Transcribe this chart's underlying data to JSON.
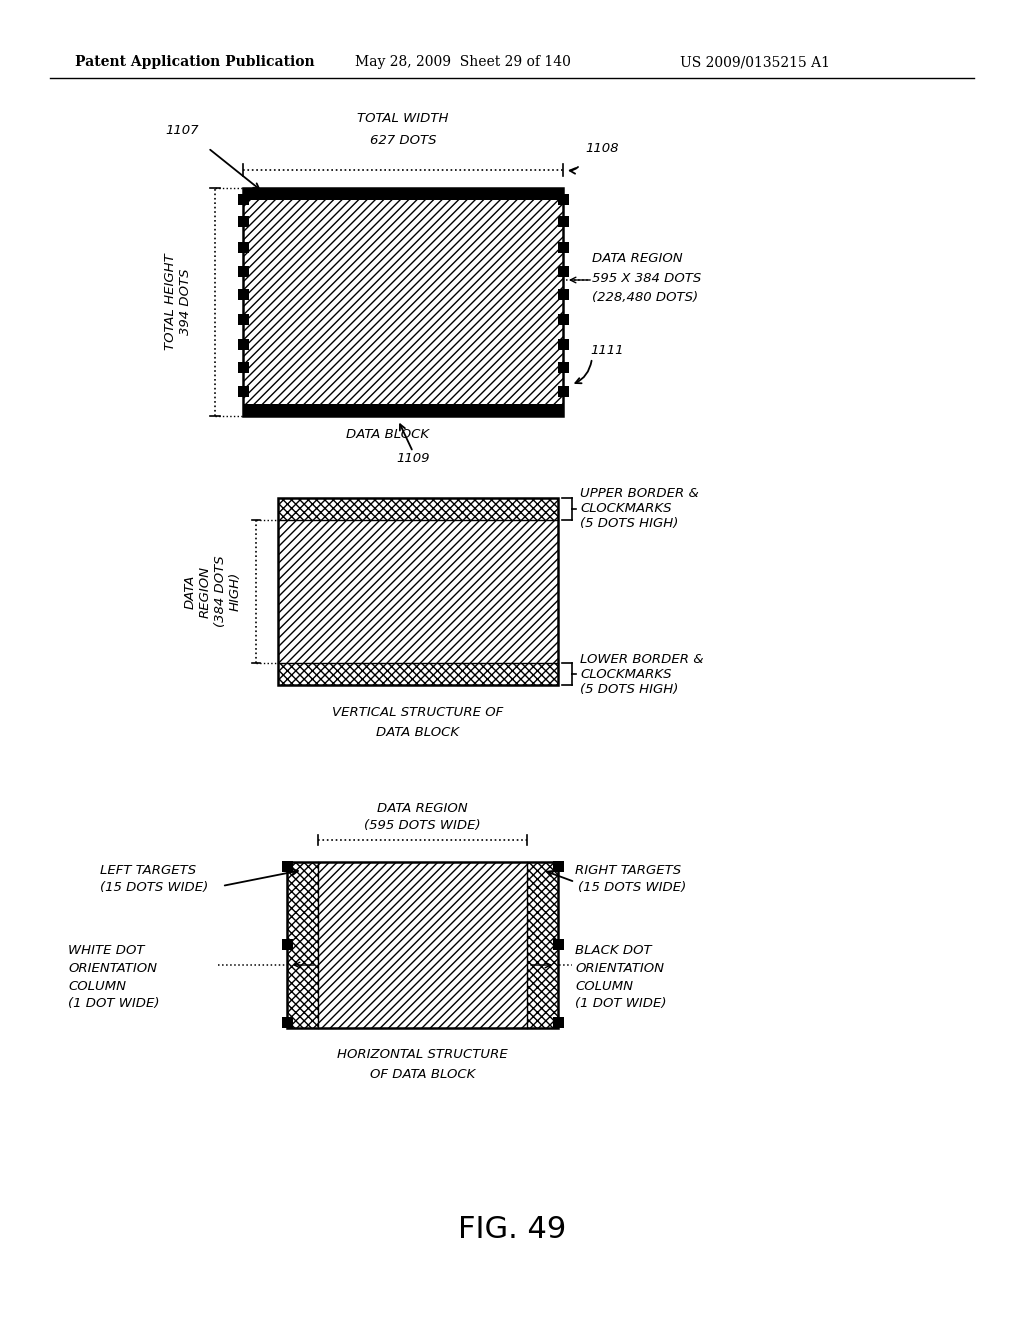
{
  "header_left": "Patent Application Publication",
  "header_mid": "May 28, 2009  Sheet 29 of 140",
  "header_right": "US 2009/0135215 A1",
  "fig_label": "FIG. 49",
  "bg_color": "#ffffff"
}
